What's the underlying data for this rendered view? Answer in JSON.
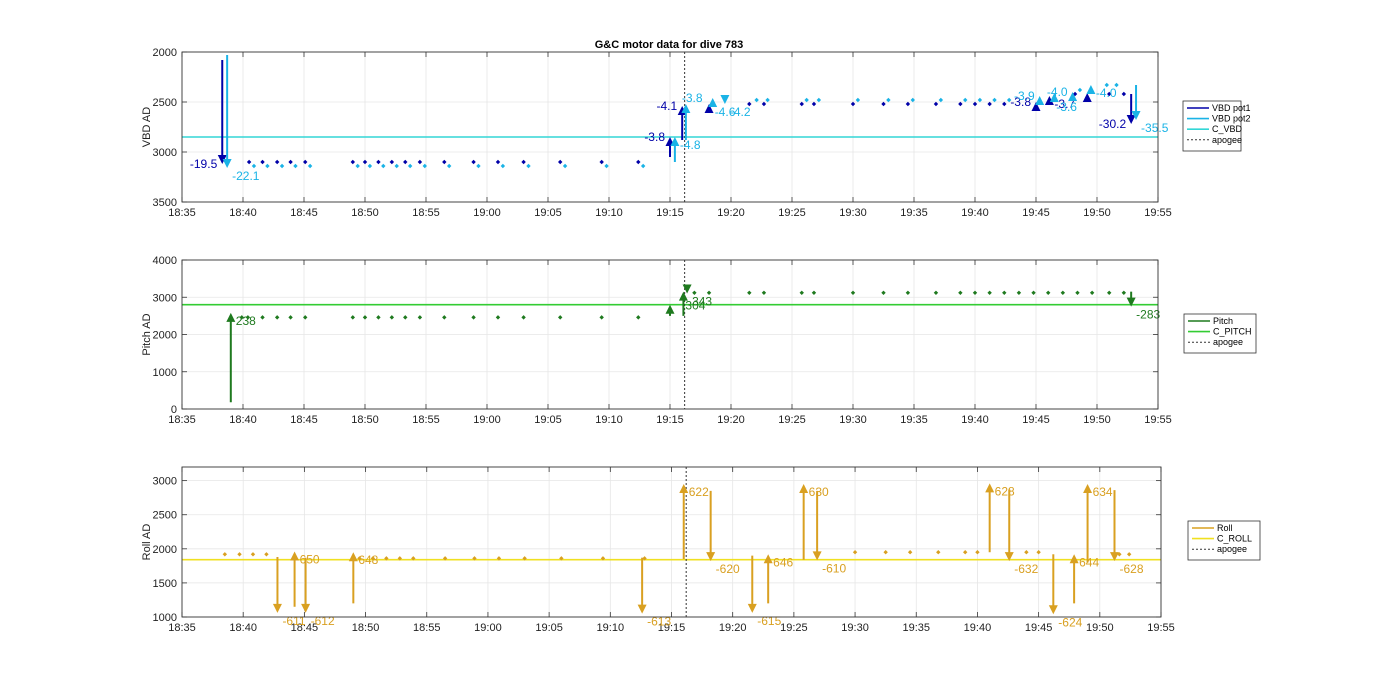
{
  "chart_data": [
    {
      "type": "scatter",
      "title": "G&C motor data for dive 783",
      "ylabel": "VBD AD",
      "ylim": [
        2000,
        3500
      ],
      "y_reversed": true,
      "xlim": [
        "18:35",
        "19:55"
      ],
      "x_ticks": [
        "18:35",
        "18:40",
        "18:45",
        "18:50",
        "18:55",
        "19:00",
        "19:05",
        "19:10",
        "19:15",
        "19:20",
        "19:25",
        "19:30",
        "19:35",
        "19:40",
        "19:45",
        "19:50",
        "19:55"
      ],
      "y_ticks": [
        2000,
        2500,
        3000,
        3500
      ],
      "grid": true,
      "legend_position": "outside-right",
      "legend": [
        "VBD pot1",
        "VBD pot2",
        "C_VBD",
        "apogee"
      ],
      "colors": {
        "pot1": "#0000a8",
        "pot2": "#1ab3e6",
        "ref": "#33d6d6",
        "apogee": "#333333"
      },
      "reference_line": {
        "name": "C_VBD",
        "y": 2850
      },
      "apogee_x": "19:16.2",
      "series": [
        {
          "name": "VBD pot1",
          "points": [
            [
              "18:40.5",
              3100
            ],
            [
              "18:41.6",
              3100
            ],
            [
              "18:42.8",
              3100
            ],
            [
              "18:43.9",
              3100
            ],
            [
              "18:45.1",
              3100
            ],
            [
              "18:49.0",
              3100
            ],
            [
              "18:50.0",
              3100
            ],
            [
              "18:51.1",
              3100
            ],
            [
              "18:52.2",
              3100
            ],
            [
              "18:53.3",
              3100
            ],
            [
              "18:54.5",
              3100
            ],
            [
              "18:56.5",
              3100
            ],
            [
              "18:58.9",
              3100
            ],
            [
              "19:00.9",
              3100
            ],
            [
              "19:03.0",
              3100
            ],
            [
              "19:06.0",
              3100
            ],
            [
              "19:09.4",
              3100
            ],
            [
              "19:12.4",
              3100
            ],
            [
              "19:21.5",
              2520
            ],
            [
              "19:22.7",
              2520
            ],
            [
              "19:25.8",
              2520
            ],
            [
              "19:26.8",
              2520
            ],
            [
              "19:30.0",
              2520
            ],
            [
              "19:32.5",
              2520
            ],
            [
              "19:34.5",
              2520
            ],
            [
              "19:36.8",
              2520
            ],
            [
              "19:38.8",
              2520
            ],
            [
              "19:40.0",
              2520
            ],
            [
              "19:41.2",
              2520
            ],
            [
              "19:42.4",
              2520
            ],
            [
              "19:48.2",
              2420
            ],
            [
              "19:51.0",
              2420
            ],
            [
              "19:52.2",
              2420
            ]
          ]
        },
        {
          "name": "VBD pot2",
          "points": [
            [
              "18:40.9",
              3140
            ],
            [
              "18:42.0",
              3140
            ],
            [
              "18:43.2",
              3140
            ],
            [
              "18:44.3",
              3140
            ],
            [
              "18:45.5",
              3140
            ],
            [
              "18:49.4",
              3140
            ],
            [
              "18:50.4",
              3140
            ],
            [
              "18:51.5",
              3140
            ],
            [
              "18:52.6",
              3140
            ],
            [
              "18:53.7",
              3140
            ],
            [
              "18:54.9",
              3140
            ],
            [
              "18:56.9",
              3140
            ],
            [
              "18:59.3",
              3140
            ],
            [
              "19:01.3",
              3140
            ],
            [
              "19:03.4",
              3140
            ],
            [
              "19:06.4",
              3140
            ],
            [
              "19:09.8",
              3140
            ],
            [
              "19:12.8",
              3140
            ],
            [
              "19:22.1",
              2480
            ],
            [
              "19:23.0",
              2480
            ],
            [
              "19:26.2",
              2480
            ],
            [
              "19:27.2",
              2480
            ],
            [
              "19:30.4",
              2480
            ],
            [
              "19:32.9",
              2480
            ],
            [
              "19:34.9",
              2480
            ],
            [
              "19:37.2",
              2480
            ],
            [
              "19:39.2",
              2480
            ],
            [
              "19:40.4",
              2480
            ],
            [
              "19:41.6",
              2480
            ],
            [
              "19:42.8",
              2480
            ],
            [
              "19:48.6",
              2380
            ],
            [
              "19:50.8",
              2330
            ],
            [
              "19:51.6",
              2330
            ]
          ]
        }
      ],
      "arrows": [
        {
          "x": "18:38.3",
          "from": 2080,
          "to": 3120,
          "series": "VBD pot1",
          "label": "-19.5",
          "label_side": "left"
        },
        {
          "x": "18:38.7",
          "from": 2030,
          "to": 3160,
          "series": "VBD pot2",
          "label": "-22.1",
          "label_side": "right"
        },
        {
          "x": "19:15.0",
          "from": 3050,
          "to": 2850,
          "series": "VBD pot1",
          "label": "-3.8",
          "label_side": "left"
        },
        {
          "x": "19:15.4",
          "from": 3100,
          "to": 2850,
          "series": "VBD pot2",
          "label": "-4.8",
          "label_side": "right"
        },
        {
          "x": "19:16.0",
          "from": 2880,
          "to": 2540,
          "series": "VBD pot1",
          "label": "-4.1",
          "label_side": "left"
        },
        {
          "x": "19:16.3",
          "from": 2880,
          "to": 2520,
          "series": "VBD pot2",
          "label": "-3.8",
          "label_side": "above"
        },
        {
          "x": "19:18.2",
          "from": 2560,
          "to": 2520,
          "series": "VBD pot1",
          "label": "",
          "label_side": "right"
        },
        {
          "x": "19:18.5",
          "from": 2520,
          "to": 2460,
          "series": "VBD pot2",
          "label": "-4.6",
          "label_side": "below"
        },
        {
          "x": "19:19.5",
          "from": 2520,
          "to": 2520,
          "series": "VBD pot2",
          "label": "-4.2",
          "label_side": "right"
        },
        {
          "x": "19:45.0",
          "from": 2530,
          "to": 2500,
          "series": "VBD pot1",
          "label": "-3.8",
          "label_side": "left"
        },
        {
          "x": "19:45.3",
          "from": 2480,
          "to": 2440,
          "series": "VBD pot2",
          "label": "-3.9",
          "label_side": "left"
        },
        {
          "x": "19:46.1",
          "from": 2490,
          "to": 2440,
          "series": "VBD pot1",
          "label": "-3.7",
          "label_side": "right"
        },
        {
          "x": "19:46.5",
          "from": 2470,
          "to": 2410,
          "series": "VBD pot2",
          "label": "-3.6",
          "label_side": "below"
        },
        {
          "x": "19:48.0",
          "from": 2450,
          "to": 2400,
          "series": "VBD pot2",
          "label": "-4.0",
          "label_side": "left"
        },
        {
          "x": "19:49.2",
          "from": 2450,
          "to": 2410,
          "series": "VBD pot1",
          "label": "",
          "label_side": "right"
        },
        {
          "x": "19:49.5",
          "from": 2390,
          "to": 2330,
          "series": "VBD pot2",
          "label": "-4.0",
          "label_side": "right"
        },
        {
          "x": "19:52.8",
          "from": 2420,
          "to": 2720,
          "series": "VBD pot1",
          "label": "-30.2",
          "label_side": "left"
        },
        {
          "x": "19:53.2",
          "from": 2330,
          "to": 2680,
          "series": "VBD pot2",
          "label": "-35.5",
          "label_side": "right"
        }
      ]
    },
    {
      "type": "scatter",
      "title": "",
      "ylabel": "Pitch AD",
      "ylim": [
        0,
        4000
      ],
      "y_reversed": false,
      "xlim": [
        "18:35",
        "19:55"
      ],
      "x_ticks": [
        "18:35",
        "18:40",
        "18:45",
        "18:50",
        "18:55",
        "19:00",
        "19:05",
        "19:10",
        "19:15",
        "19:20",
        "19:25",
        "19:30",
        "19:35",
        "19:40",
        "19:45",
        "19:50",
        "19:55"
      ],
      "y_ticks": [
        0,
        1000,
        2000,
        3000,
        4000
      ],
      "grid": true,
      "legend_position": "outside-right",
      "legend": [
        "Pitch",
        "C_PITCH",
        "apogee"
      ],
      "colors": {
        "main": "#1f7a1f",
        "ref": "#33cc33",
        "apogee": "#333333"
      },
      "reference_line": {
        "name": "C_PITCH",
        "y": 2800
      },
      "apogee_x": "19:16.2",
      "series": [
        {
          "name": "Pitch",
          "points": [
            [
              "18:39.9",
              2460
            ],
            [
              "18:40.4",
              2460
            ],
            [
              "18:41.6",
              2460
            ],
            [
              "18:42.8",
              2460
            ],
            [
              "18:43.9",
              2460
            ],
            [
              "18:45.1",
              2460
            ],
            [
              "18:49.0",
              2460
            ],
            [
              "18:50.0",
              2460
            ],
            [
              "18:51.1",
              2460
            ],
            [
              "18:52.2",
              2460
            ],
            [
              "18:53.3",
              2460
            ],
            [
              "18:54.5",
              2460
            ],
            [
              "18:56.5",
              2460
            ],
            [
              "18:58.9",
              2460
            ],
            [
              "19:00.9",
              2460
            ],
            [
              "19:03.0",
              2460
            ],
            [
              "19:06.0",
              2460
            ],
            [
              "19:09.4",
              2460
            ],
            [
              "19:12.4",
              2460
            ],
            [
              "19:17.0",
              3120
            ],
            [
              "19:18.2",
              3120
            ],
            [
              "19:21.5",
              3120
            ],
            [
              "19:22.7",
              3120
            ],
            [
              "19:25.8",
              3120
            ],
            [
              "19:26.8",
              3120
            ],
            [
              "19:30.0",
              3120
            ],
            [
              "19:32.5",
              3120
            ],
            [
              "19:34.5",
              3120
            ],
            [
              "19:36.8",
              3120
            ],
            [
              "19:38.8",
              3120
            ],
            [
              "19:40.0",
              3120
            ],
            [
              "19:41.2",
              3120
            ],
            [
              "19:42.4",
              3120
            ],
            [
              "19:43.6",
              3120
            ],
            [
              "19:44.8",
              3120
            ],
            [
              "19:46.0",
              3120
            ],
            [
              "19:47.2",
              3120
            ],
            [
              "19:48.4",
              3120
            ],
            [
              "19:49.6",
              3120
            ],
            [
              "19:51.0",
              3120
            ],
            [
              "19:52.2",
              3120
            ]
          ]
        }
      ],
      "arrows": [
        {
          "x": "18:39.0",
          "from": 180,
          "to": 2580,
          "label": "238",
          "label_side": "right"
        },
        {
          "x": "19:15.0",
          "from": 2500,
          "to": 2800,
          "label": "",
          "label_side": "right"
        },
        {
          "x": "19:16.1",
          "from": 2500,
          "to": 3150,
          "label": "304",
          "label_side": "below"
        },
        {
          "x": "19:16.4",
          "from": 3100,
          "to": 3100,
          "label": "343",
          "label_side": "right"
        },
        {
          "x": "19:52.8",
          "from": 3150,
          "to": 2750,
          "label": "-283",
          "label_side": "right"
        }
      ]
    },
    {
      "type": "scatter",
      "title": "",
      "ylabel": "Roll AD",
      "ylim": [
        1000,
        3200
      ],
      "y_reversed": false,
      "xlim": [
        "18:35",
        "19:55"
      ],
      "x_ticks": [
        "18:35",
        "18:40",
        "18:45",
        "18:50",
        "18:55",
        "19:00",
        "19:05",
        "19:10",
        "19:15",
        "19:20",
        "19:25",
        "19:30",
        "19:35",
        "19:40",
        "19:45",
        "19:50",
        "19:55"
      ],
      "y_ticks": [
        1000,
        1500,
        2000,
        2500,
        3000
      ],
      "grid": true,
      "legend_position": "outside-right",
      "legend": [
        "Roll",
        "C_ROLL",
        "apogee"
      ],
      "colors": {
        "main": "#d9a021",
        "ref": "#f0e020",
        "apogee": "#333333"
      },
      "reference_line": {
        "name": "C_ROLL",
        "y": 1840
      },
      "apogee_x": "19:16.2",
      "series": [
        {
          "name": "Roll",
          "points": [
            [
              "18:38.5",
              1920
            ],
            [
              "18:39.7",
              1920
            ],
            [
              "18:40.8",
              1920
            ],
            [
              "18:41.9",
              1920
            ],
            [
              "18:49.5",
              1860
            ],
            [
              "18:50.6",
              1860
            ],
            [
              "18:51.7",
              1860
            ],
            [
              "18:52.8",
              1860
            ],
            [
              "18:53.9",
              1860
            ],
            [
              "18:56.5",
              1860
            ],
            [
              "18:58.9",
              1860
            ],
            [
              "19:00.9",
              1860
            ],
            [
              "19:03.0",
              1860
            ],
            [
              "19:06.0",
              1860
            ],
            [
              "19:09.4",
              1860
            ],
            [
              "19:12.8",
              1860
            ],
            [
              "19:30.0",
              1950
            ],
            [
              "19:32.5",
              1950
            ],
            [
              "19:34.5",
              1950
            ],
            [
              "19:36.8",
              1950
            ],
            [
              "19:39.0",
              1950
            ],
            [
              "19:40.0",
              1950
            ],
            [
              "19:44.0",
              1950
            ],
            [
              "19:45.0",
              1950
            ],
            [
              "19:51.6",
              1920
            ],
            [
              "19:52.4",
              1920
            ]
          ]
        }
      ],
      "arrows": [
        {
          "x": "18:42.8",
          "from": 1880,
          "to": 1060,
          "label": "-611",
          "label_side": "right"
        },
        {
          "x": "18:44.2",
          "from": 1150,
          "to": 1960,
          "label": "650",
          "label_side": "right"
        },
        {
          "x": "18:45.1",
          "from": 1870,
          "to": 1060,
          "label": "-612",
          "label_side": "right"
        },
        {
          "x": "18:49.0",
          "from": 1200,
          "to": 1950,
          "label": "648",
          "label_side": "right"
        },
        {
          "x": "19:12.6",
          "from": 1870,
          "to": 1050,
          "label": "-613",
          "label_side": "right"
        },
        {
          "x": "19:16.0",
          "from": 1850,
          "to": 2950,
          "label": "622",
          "label_side": "right"
        },
        {
          "x": "19:18.2",
          "from": 2850,
          "to": 1820,
          "label": "-620",
          "label_side": "right"
        },
        {
          "x": "19:21.6",
          "from": 1900,
          "to": 1060,
          "label": "-615",
          "label_side": "right"
        },
        {
          "x": "19:22.9",
          "from": 1200,
          "to": 1920,
          "label": "646",
          "label_side": "right"
        },
        {
          "x": "19:25.8",
          "from": 1840,
          "to": 2950,
          "label": "630",
          "label_side": "right"
        },
        {
          "x": "19:26.9",
          "from": 2850,
          "to": 1830,
          "label": "-610",
          "label_side": "right"
        },
        {
          "x": "19:41.0",
          "from": 1950,
          "to": 2960,
          "label": "628",
          "label_side": "right"
        },
        {
          "x": "19:42.6",
          "from": 2870,
          "to": 1820,
          "label": "-632",
          "label_side": "right"
        },
        {
          "x": "19:46.2",
          "from": 1920,
          "to": 1040,
          "label": "-624",
          "label_side": "right"
        },
        {
          "x": "19:47.9",
          "from": 1200,
          "to": 1920,
          "label": "644",
          "label_side": "right"
        },
        {
          "x": "19:49.0",
          "from": 1800,
          "to": 2950,
          "label": "634",
          "label_side": "right"
        },
        {
          "x": "19:51.2",
          "from": 2860,
          "to": 1820,
          "label": "-628",
          "label_side": "right"
        }
      ]
    }
  ]
}
